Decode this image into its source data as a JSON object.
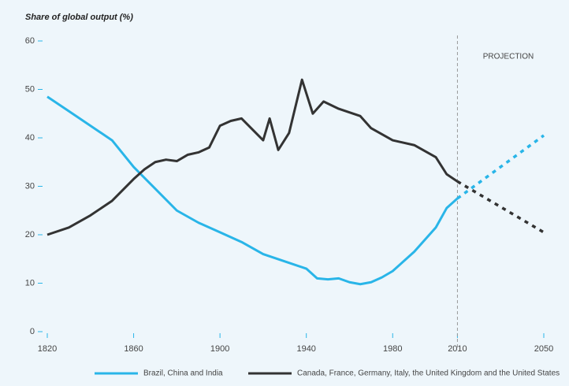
{
  "chart_data": {
    "type": "line",
    "title": "Share of global output (%)",
    "annotation": "PROJECTION",
    "xlim": [
      1820,
      2050
    ],
    "xticks": [
      1820,
      1860,
      1900,
      1940,
      1980,
      2010,
      2050
    ],
    "ylim": [
      0,
      60
    ],
    "yticks": [
      0,
      10,
      20,
      30,
      40,
      50,
      60
    ],
    "divider_x": 2010,
    "series": [
      {
        "name": "Brazil, China and India",
        "color": "#29b5e8",
        "x": [
          1820,
          1830,
          1840,
          1850,
          1860,
          1870,
          1880,
          1890,
          1900,
          1910,
          1920,
          1930,
          1940,
          1945,
          1950,
          1955,
          1960,
          1965,
          1970,
          1975,
          1980,
          1990,
          2000,
          2005,
          2010
        ],
        "values": [
          48.5,
          45.5,
          42.5,
          39.5,
          34,
          29.5,
          25,
          22.5,
          20.5,
          18.5,
          16,
          14.5,
          13,
          11,
          10.8,
          11,
          10.2,
          9.8,
          10.2,
          11.2,
          12.5,
          16.5,
          21.5,
          25.5,
          27.5
        ],
        "projection": {
          "x": [
            2010,
            2050
          ],
          "values": [
            27.5,
            40.5
          ]
        }
      },
      {
        "name": "Canada, France, Germany, Italy, the United Kingdom and the United States",
        "color": "#333333",
        "x": [
          1820,
          1830,
          1840,
          1850,
          1860,
          1865,
          1870,
          1875,
          1880,
          1885,
          1890,
          1895,
          1900,
          1905,
          1910,
          1920,
          1923,
          1927,
          1932,
          1938,
          1943,
          1948,
          1955,
          1965,
          1970,
          1980,
          1990,
          2000,
          2005,
          2010
        ],
        "values": [
          20,
          21.5,
          24,
          27,
          31.5,
          33.5,
          35,
          35.5,
          35.2,
          36.5,
          37,
          38,
          42.5,
          43.5,
          44,
          39.5,
          44,
          37.5,
          41,
          52,
          45,
          47.5,
          46,
          44.5,
          42,
          39.5,
          38.5,
          36,
          32.5,
          31
        ],
        "projection": {
          "x": [
            2010,
            2050
          ],
          "values": [
            31,
            20.5
          ]
        }
      }
    ]
  }
}
